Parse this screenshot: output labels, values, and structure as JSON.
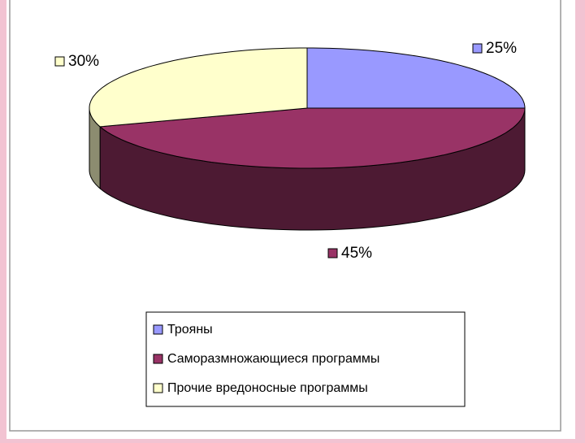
{
  "chart_data": {
    "type": "pie",
    "three_d": true,
    "categories": [
      "Трояны",
      "Саморазмножающиеся программы",
      "Прочие вредоносные программы"
    ],
    "values": [
      25,
      45,
      30
    ],
    "value_labels": [
      "25%",
      "45%",
      "30%"
    ],
    "colors": [
      "#9999ff",
      "#993366",
      "#ffffcc"
    ],
    "side_colors": [
      "#5c5c99",
      "#4d1a33",
      "#8c8c70"
    ],
    "legend": "bottom"
  }
}
